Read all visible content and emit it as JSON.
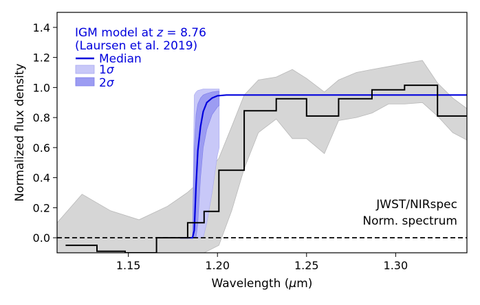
{
  "chart_data": {
    "type": "line",
    "xlabel": "Wavelength (μm)",
    "ylabel": "Normalized flux density",
    "xlim": [
      1.11,
      1.34
    ],
    "ylim": [
      -0.1,
      1.5
    ],
    "xticks": [
      1.15,
      1.2,
      1.25,
      1.3
    ],
    "xtick_labels": [
      "1.15",
      "1.20",
      "1.25",
      "1.30"
    ],
    "yticks": [
      0.0,
      0.2,
      0.4,
      0.6,
      0.8,
      1.0,
      1.2,
      1.4
    ],
    "ytick_labels": [
      "0.0",
      "0.2",
      "0.4",
      "0.6",
      "0.8",
      "1.0",
      "1.2",
      "1.4"
    ],
    "legend": {
      "title_prefix": "IGM model at ",
      "title_z": "z",
      "title_suffix": " = 8.76",
      "subtitle": "(Laursen et al. 2019)",
      "entries": [
        "Median",
        "1σ",
        "2σ"
      ]
    },
    "annotation": [
      "JWST/NIRspec",
      "Norm. spectrum"
    ],
    "zero_line": 0.0,
    "spectrum_steps": {
      "edges": [
        1.1148,
        1.1324,
        1.1482,
        1.1658,
        1.1833,
        1.1925,
        1.2008,
        1.215,
        1.233,
        1.25,
        1.268,
        1.2867,
        1.305,
        1.3235,
        1.34
      ],
      "values": [
        -0.05,
        -0.09,
        -0.1,
        0.0,
        0.1,
        0.175,
        0.45,
        0.845,
        0.925,
        0.81,
        0.925,
        0.985,
        1.015,
        0.81
      ]
    },
    "error_band": {
      "x": [
        1.11,
        1.124,
        1.14,
        1.156,
        1.172,
        1.183,
        1.1925,
        1.2008,
        1.208,
        1.215,
        1.223,
        1.233,
        1.242,
        1.25,
        1.26,
        1.268,
        1.278,
        1.2867,
        1.296,
        1.305,
        1.315,
        1.3235,
        1.332,
        1.34
      ],
      "upper": [
        0.1,
        0.29,
        0.18,
        0.12,
        0.21,
        0.3,
        0.4,
        0.53,
        0.74,
        0.95,
        1.05,
        1.07,
        1.12,
        1.06,
        0.97,
        1.05,
        1.1,
        1.12,
        1.14,
        1.16,
        1.18,
        1.03,
        0.93,
        0.86
      ],
      "lower": [
        -0.1,
        -0.1,
        -0.1,
        -0.1,
        -0.1,
        -0.1,
        -0.1,
        -0.05,
        0.18,
        0.46,
        0.7,
        0.79,
        0.66,
        0.66,
        0.56,
        0.78,
        0.8,
        0.83,
        0.89,
        0.89,
        0.9,
        0.81,
        0.7,
        0.65
      ]
    },
    "igm_model": {
      "redshift": 8.76,
      "plateau": 0.95,
      "median_x": [
        1.179,
        1.186,
        1.187,
        1.188,
        1.189,
        1.1905,
        1.192,
        1.194,
        1.197,
        1.2,
        1.205,
        1.34
      ],
      "median_y": [
        0.0,
        0.0,
        0.05,
        0.35,
        0.58,
        0.74,
        0.84,
        0.9,
        0.93,
        0.945,
        0.95,
        0.95
      ],
      "band_x": [
        1.186,
        1.187,
        1.188,
        1.189,
        1.1905,
        1.192,
        1.194,
        1.197,
        1.2,
        1.201
      ],
      "sigma1_upper": [
        0.0,
        0.6,
        0.82,
        0.89,
        0.93,
        0.95,
        0.96,
        0.97,
        0.975,
        0.975
      ],
      "sigma1_lower": [
        0.0,
        0.0,
        0.0,
        0.1,
        0.4,
        0.6,
        0.72,
        0.82,
        0.87,
        0.88
      ],
      "sigma2_upper": [
        0.0,
        0.95,
        0.97,
        0.98,
        0.985,
        0.99,
        0.99,
        0.99,
        0.99,
        0.99
      ],
      "sigma2_lower": [
        0.0,
        0.0,
        0.0,
        0.0,
        0.0,
        0.0,
        0.1,
        0.3,
        0.55,
        0.6
      ]
    },
    "colors": {
      "median": "#0000dd",
      "sigma1": "#c8c8f8",
      "sigma2": "#9c9cf2",
      "error_band": "#d6d6d6",
      "error_band_edge": "#b8b8b8",
      "spectrum": "#000000",
      "zero_line": "#000000",
      "legend_text": "#0000dd"
    }
  }
}
